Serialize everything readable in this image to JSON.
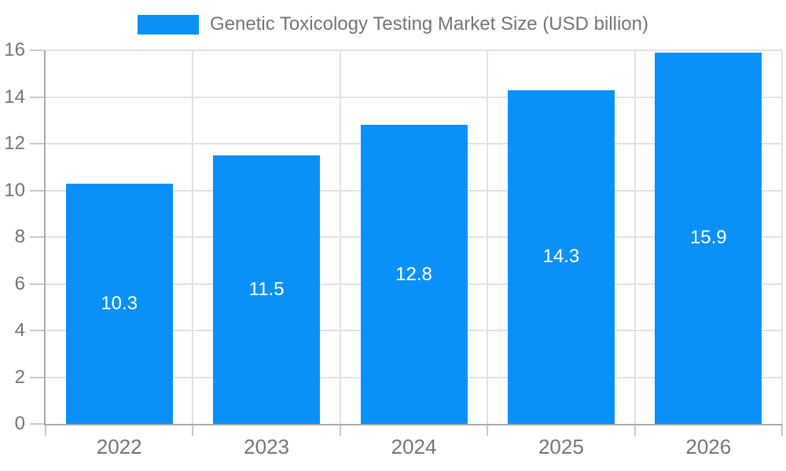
{
  "legend": {
    "label": "Genetic Toxicology Testing Market Size (USD billion)"
  },
  "chart_data": {
    "type": "bar",
    "title": "Genetic Toxicology Testing Market Size (USD billion)",
    "categories": [
      "2022",
      "2023",
      "2024",
      "2025",
      "2026"
    ],
    "values": [
      10.3,
      11.5,
      12.8,
      14.3,
      15.9
    ],
    "value_labels": [
      "10.3",
      "11.5",
      "12.8",
      "14.3",
      "15.9"
    ],
    "xlabel": "",
    "ylabel": "",
    "ylim": [
      0,
      16
    ],
    "yticks": [
      0,
      2,
      4,
      6,
      8,
      10,
      12,
      14,
      16
    ],
    "grid": true,
    "legend_position": "top"
  },
  "colors": {
    "bar": "#0991F9",
    "label_text": "#757575",
    "value_text": "#ffffff",
    "axis_line": "#ABABAB",
    "gridline": "#E2E2E5",
    "tick": "#C9C9C9",
    "background": "#ffffff"
  }
}
